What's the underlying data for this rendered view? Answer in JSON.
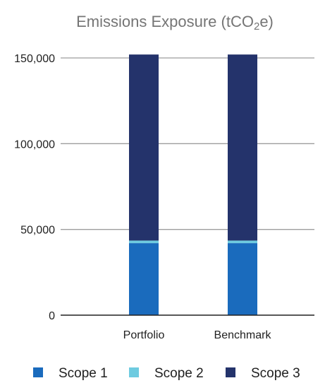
{
  "chart_data": {
    "type": "bar",
    "stacked": true,
    "title_prefix": "Emissions Exposure (tCO",
    "title_sub": "2",
    "title_suffix": "e)",
    "categories": [
      "Portfolio",
      "Benchmark"
    ],
    "series": [
      {
        "name": "Scope 1",
        "color": "#1a6bbd",
        "values": [
          42000,
          42000
        ]
      },
      {
        "name": "Scope 2",
        "color": "#6ecbe0",
        "values": [
          1500,
          1500
        ]
      },
      {
        "name": "Scope 3",
        "color": "#24336b",
        "values": [
          108500,
          108500
        ]
      }
    ],
    "yticks": [
      {
        "value": 0,
        "label": "0"
      },
      {
        "value": 50000,
        "label": "50,000"
      },
      {
        "value": 100000,
        "label": "100,000"
      },
      {
        "value": 150000,
        "label": "150,000"
      }
    ],
    "ylim": [
      0,
      150000
    ],
    "grid": true,
    "legend_position": "bottom"
  }
}
